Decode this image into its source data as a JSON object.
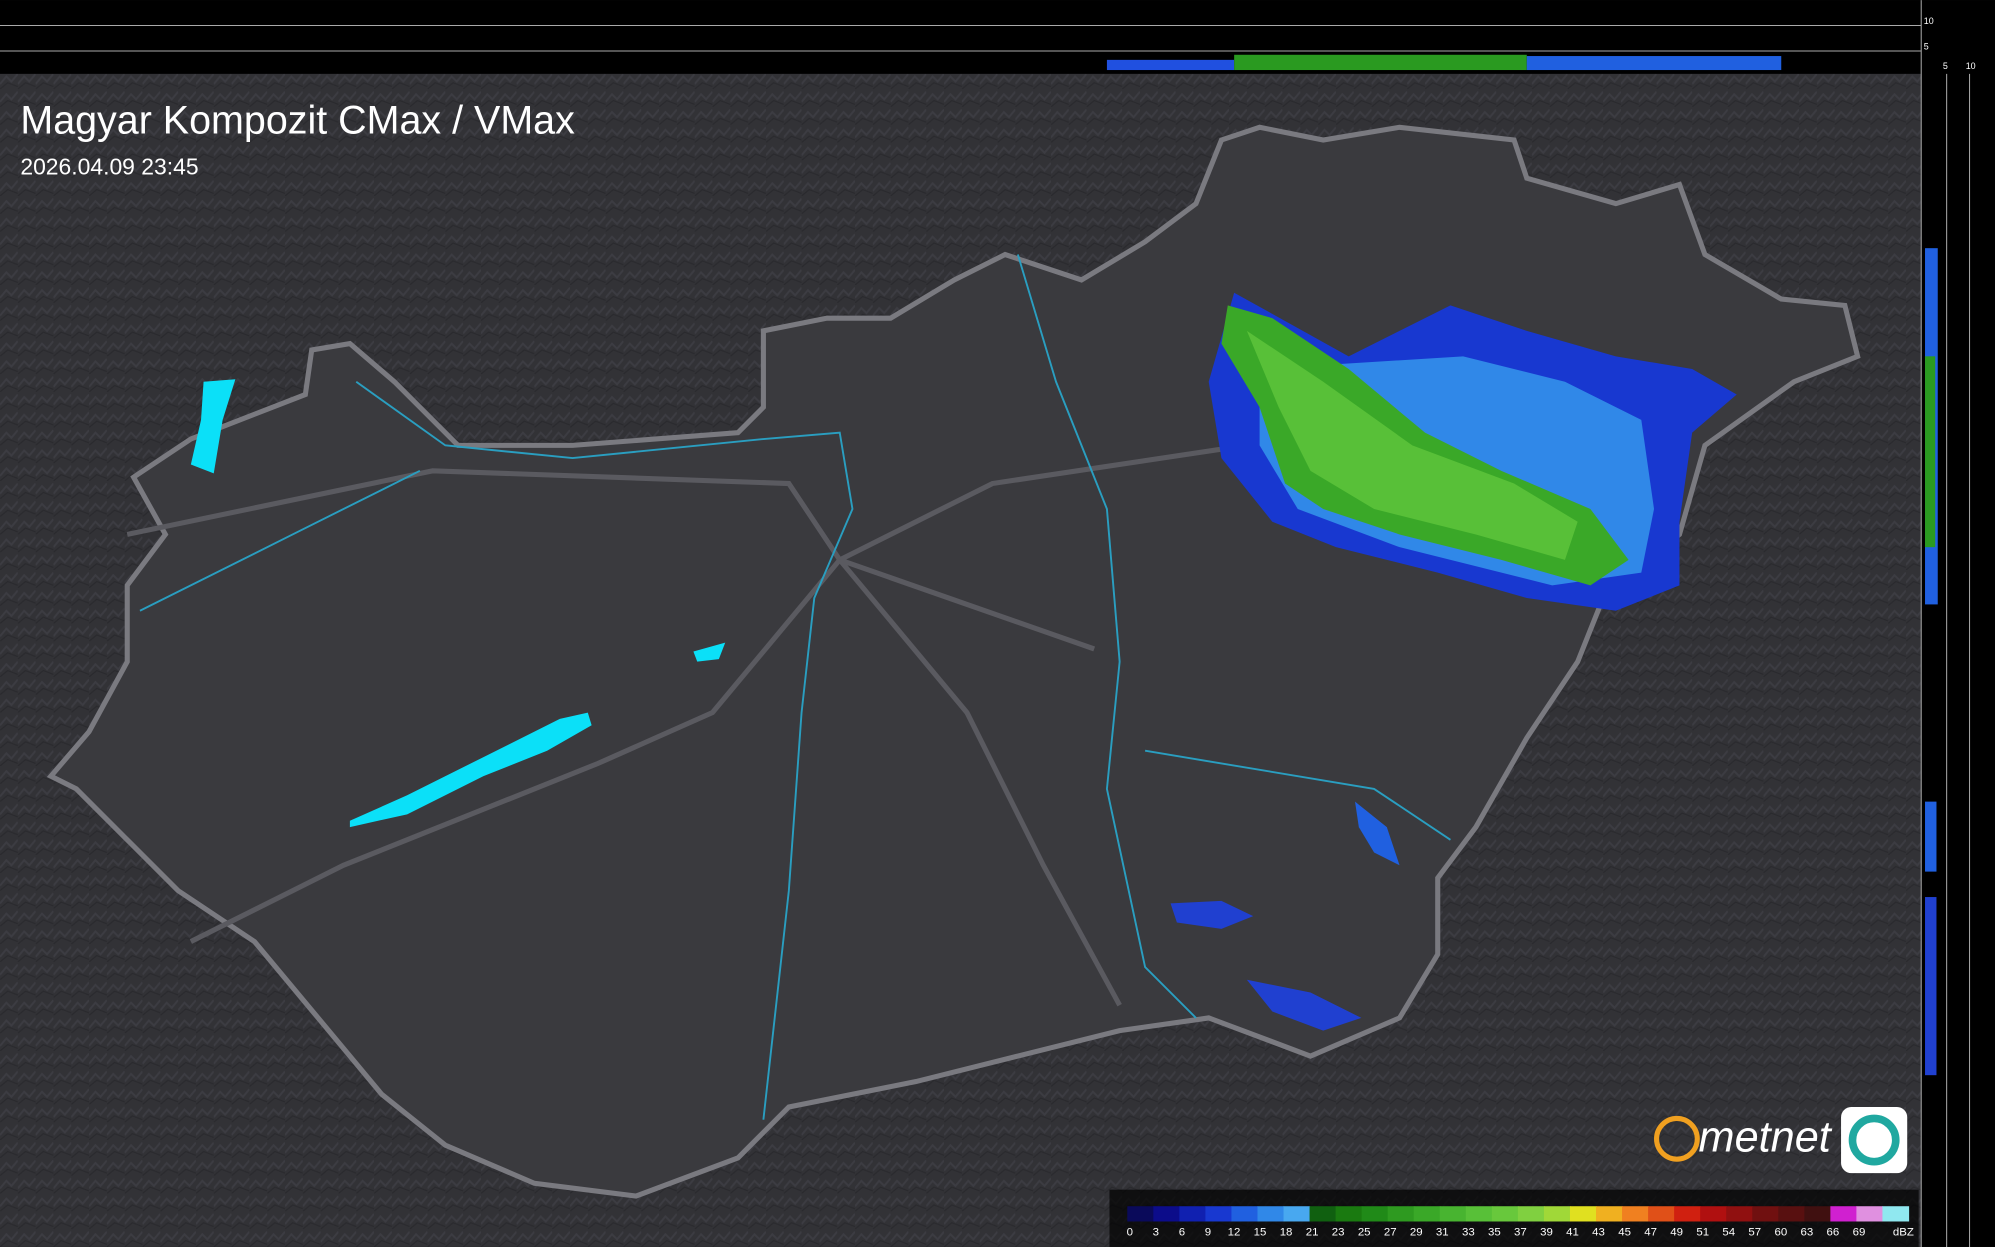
{
  "header": {
    "title": "Magyar Kompozit CMax / VMax",
    "timestamp": "2026.04.09 23:45"
  },
  "profile_labels": {
    "top": [
      "10",
      "5"
    ],
    "side": [
      "5",
      "10"
    ]
  },
  "logo": "metnet",
  "legend": {
    "unit": "dBZ",
    "labels": [
      0,
      3,
      6,
      9,
      12,
      15,
      18,
      21,
      23,
      25,
      27,
      29,
      31,
      33,
      35,
      37,
      39,
      41,
      43,
      45,
      47,
      49,
      51,
      54,
      57,
      60,
      63,
      66,
      69
    ],
    "colors": [
      "#0a0a5a",
      "#0c0c8a",
      "#1020b0",
      "#1838d0",
      "#2060e0",
      "#3088e8",
      "#48a8f0",
      "#106010",
      "#1a7a10",
      "#208a18",
      "#2e9a20",
      "#3aa828",
      "#48b430",
      "#58c038",
      "#68c83c",
      "#80d040",
      "#a0d838",
      "#e0e020",
      "#f0b020",
      "#f08020",
      "#e05018",
      "#d02010",
      "#b01010",
      "#901010",
      "#701010",
      "#581010",
      "#401010",
      "#d020d0",
      "#e090e0",
      "#90e8f0"
    ]
  }
}
